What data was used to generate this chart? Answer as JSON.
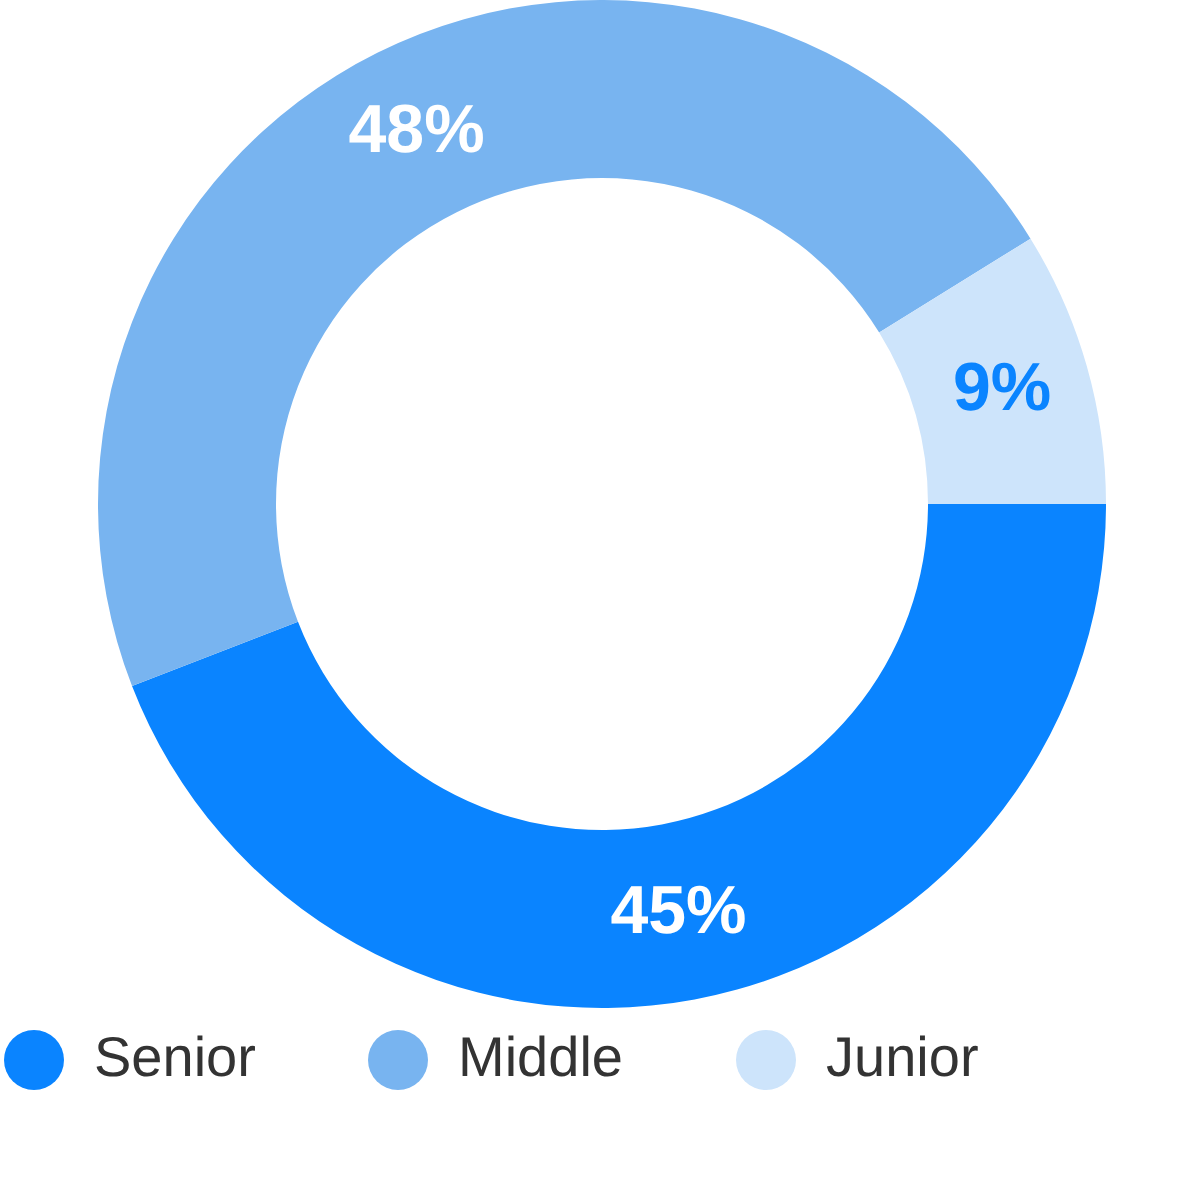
{
  "chart_data": {
    "type": "donut",
    "categories": [
      "Senior",
      "Middle",
      "Junior"
    ],
    "values": [
      45,
      48,
      9
    ],
    "colors": [
      "#0a84ff",
      "#78b4f0",
      "#cde4fb"
    ],
    "value_labels": [
      "45%",
      "48%",
      "9%"
    ],
    "legend": "bottom"
  }
}
